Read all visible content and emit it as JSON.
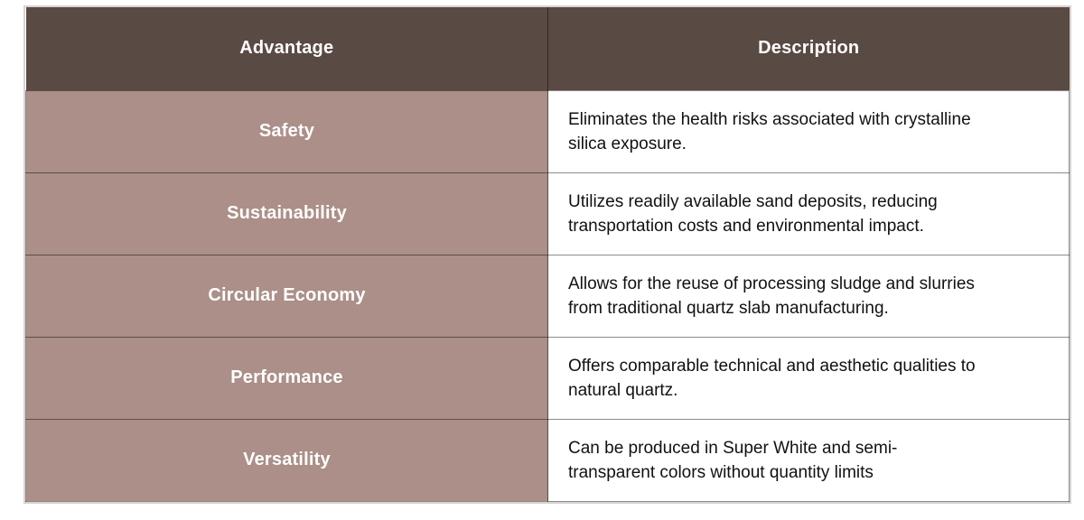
{
  "colors": {
    "header_bg": "#5a4a44",
    "header_text": "#ffffff",
    "advantage_cell_bg": "#ab8f88",
    "advantage_text": "#ffffff",
    "description_bg": "#ffffff",
    "description_text": "#111111"
  },
  "table": {
    "headers": {
      "advantage": "Advantage",
      "description": "Description"
    },
    "rows": [
      {
        "advantage": "Safety",
        "description_lines": [
          "Eliminates the health risks associated with crystalline",
          "silica exposure."
        ]
      },
      {
        "advantage": "Sustainability",
        "description_lines": [
          "Utilizes readily available sand deposits, reducing",
          "transportation costs and environmental impact."
        ]
      },
      {
        "advantage": "Circular Economy",
        "description_lines": [
          "Allows for the reuse of processing sludge and slurries",
          "from traditional quartz slab manufacturing."
        ]
      },
      {
        "advantage": "Performance",
        "description_lines": [
          "Offers comparable technical and aesthetic qualities to",
          "natural quartz."
        ]
      },
      {
        "advantage": "Versatility",
        "description_lines": [
          "Can be produced in Super White and semi-",
          "transparent colors without quantity limits"
        ]
      }
    ]
  }
}
